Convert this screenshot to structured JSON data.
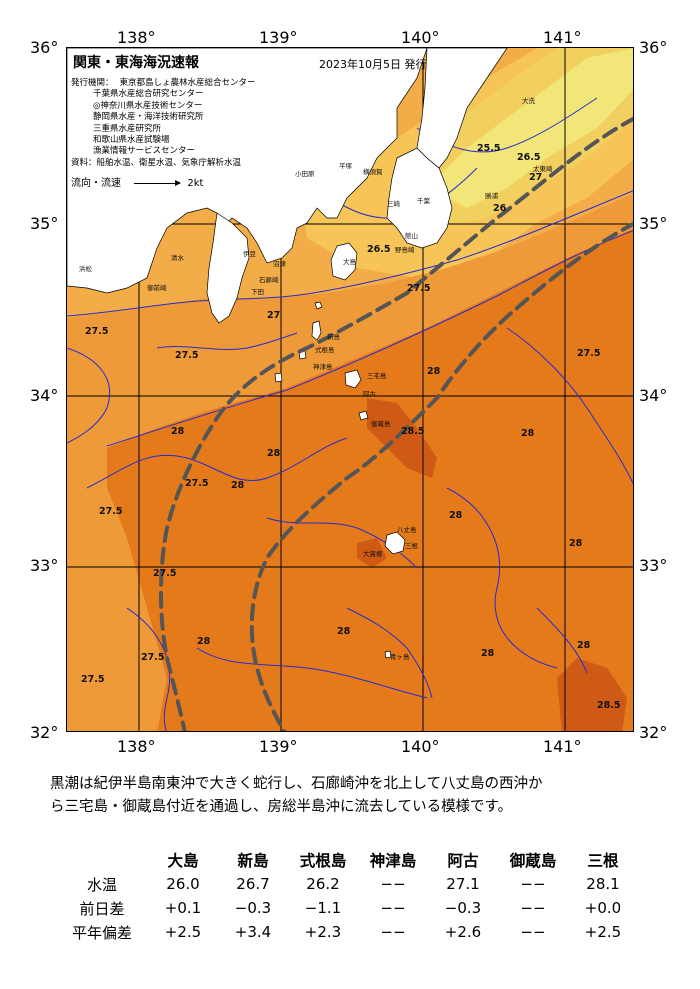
{
  "map": {
    "title": "関東・東海海況速報",
    "date": "2023年10月5日 発行",
    "issuer_label": "発行機関：",
    "issuers": [
      "東京都島しょ農林水産総合センター",
      "千葉県水産総合研究センター",
      "◎神奈川県水産技術センター",
      "静岡県水産・海洋技術研究所",
      "三重県水産研究所",
      "和歌山県水産試験場",
      "漁業情報サービスセンター"
    ],
    "source": "資料：船舶水温、衛星水温、気象庁解析水温",
    "legend_label": "流向・流速",
    "legend_value": "2kt",
    "longitudes": [
      "138°",
      "139°",
      "140°",
      "141°"
    ],
    "latitudes": [
      "36°",
      "35°",
      "34°",
      "33°",
      "32°"
    ],
    "places": [
      "大洗",
      "平塚",
      "横須賀",
      "小田原",
      "館山",
      "浜松",
      "御前崎",
      "三崎",
      "千葉",
      "太東崎",
      "勝浦",
      "野島崎",
      "大島",
      "新島",
      "式根島",
      "神津島",
      "阿古",
      "三宅島",
      "御蔵島",
      "八丈島",
      "三根",
      "大賀郷",
      "青ヶ島",
      "下田",
      "石廊崎",
      "伊豆",
      "沼津",
      "清水"
    ],
    "isotherm_labels": [
      "25.5",
      "26",
      "26.5",
      "27",
      "27.5",
      "28",
      "28.5"
    ],
    "colors": {
      "band_25_5": "#f3e678",
      "band_26": "#f2d060",
      "band_26_5": "#f6c457",
      "band_27": "#f2ac48",
      "band_27_5": "#ee9a38",
      "band_28": "#e57a1b",
      "band_28_5": "#cf5a16",
      "land": "#ffffff",
      "isotherm": "#2a2ad0",
      "kuroshio_axis": "#555555"
    }
  },
  "description": [
    "黒潮は紀伊半島南東沖で大きく蛇行し、石廊崎沖を北上して八丈島の西沖か",
    "ら三宅島・御蔵島付近を通過し、房総半島沖に流去している模様です。"
  ],
  "table": {
    "stations": [
      "大島",
      "新島",
      "式根島",
      "神津島",
      "阿古",
      "御蔵島",
      "三根"
    ],
    "rows": [
      {
        "label": "水温",
        "values": [
          "26.0",
          "26.7",
          "26.2",
          "−−",
          "27.1",
          "−−",
          "28.1"
        ]
      },
      {
        "label": "前日差",
        "values": [
          "+0.1",
          "−0.3",
          "−1.1",
          "−−",
          "−0.3",
          "−−",
          "+0.0"
        ]
      },
      {
        "label": "平年偏差",
        "values": [
          "+2.5",
          "+3.4",
          "+2.3",
          "−−",
          "+2.6",
          "−−",
          "+2.5"
        ]
      }
    ]
  }
}
